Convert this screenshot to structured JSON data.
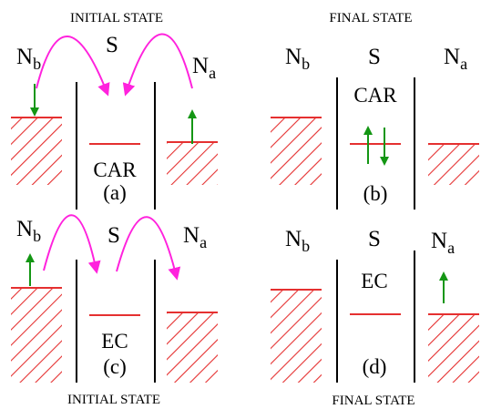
{
  "headers": {
    "top_left": "INITIAL STATE",
    "top_right": "FINAL STATE",
    "bottom_left": "INITIAL STATE",
    "bottom_right": "FINAL STATE"
  },
  "panels": {
    "a": {
      "left": "N",
      "left_sub": "b",
      "middle": "S",
      "right": "N",
      "right_sub": "a",
      "process": "CAR",
      "tag": "(a)"
    },
    "b": {
      "left": "N",
      "left_sub": "b",
      "middle": "S",
      "right": "N",
      "right_sub": "a",
      "process": "CAR",
      "tag": "(b)"
    },
    "c": {
      "left": "N",
      "left_sub": "b",
      "middle": "S",
      "right": "N",
      "right_sub": "a",
      "process": "EC",
      "tag": "(c)"
    },
    "d": {
      "left": "N",
      "left_sub": "b",
      "middle": "S",
      "right": "N",
      "right_sub": "a",
      "process": "EC",
      "tag": "(d)"
    }
  },
  "colors": {
    "hatch": "#e53030",
    "arrow_green": "#149614",
    "hop_magenta": "#ff22dd",
    "wall": "#000000"
  }
}
